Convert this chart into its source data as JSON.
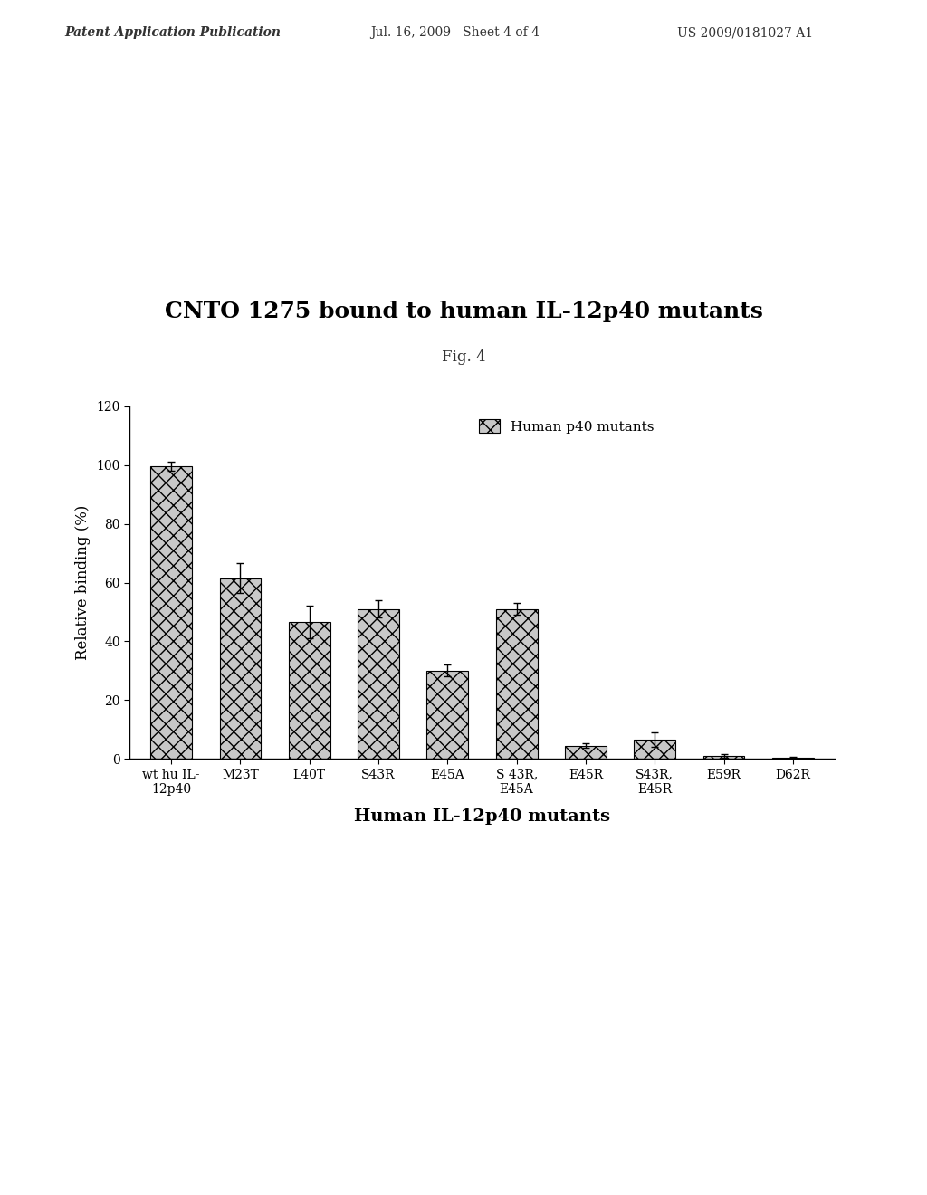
{
  "title": "CNTO 1275 bound to human IL-12p40 mutants",
  "fig_label": "Fig. 4",
  "xlabel": "Human IL-12p40 mutants",
  "ylabel": "Relative binding (%)",
  "ylim": [
    0,
    120
  ],
  "yticks": [
    0,
    20,
    40,
    60,
    80,
    100,
    120
  ],
  "categories": [
    "wt hu IL-\n12p40",
    "M23T",
    "L40T",
    "S43R",
    "E45A",
    "S 43R,\nE45A",
    "E45R",
    "S43R,\nE45R",
    "E59R",
    "D62R"
  ],
  "values": [
    99.5,
    61.5,
    46.5,
    51.0,
    30.0,
    51.0,
    4.5,
    6.5,
    1.0,
    0.5
  ],
  "errors": [
    1.5,
    5.0,
    5.5,
    3.0,
    2.0,
    2.0,
    0.8,
    2.5,
    0.5,
    0.3
  ],
  "bar_color": "#c8c8c8",
  "bar_hatch": "xx",
  "legend_label": "Human p40 mutants",
  "legend_hatch": "xx",
  "legend_color": "#c8c8c8",
  "header_left": "Patent Application Publication",
  "header_mid": "Jul. 16, 2009   Sheet 4 of 4",
  "header_right": "US 2009/0181027 A1",
  "background_color": "#ffffff",
  "bar_width": 0.6,
  "bar_edge_color": "#000000",
  "title_fontsize": 18,
  "axis_fontsize": 12,
  "tick_fontsize": 10,
  "header_fontsize": 10,
  "fig_label_fontsize": 12
}
